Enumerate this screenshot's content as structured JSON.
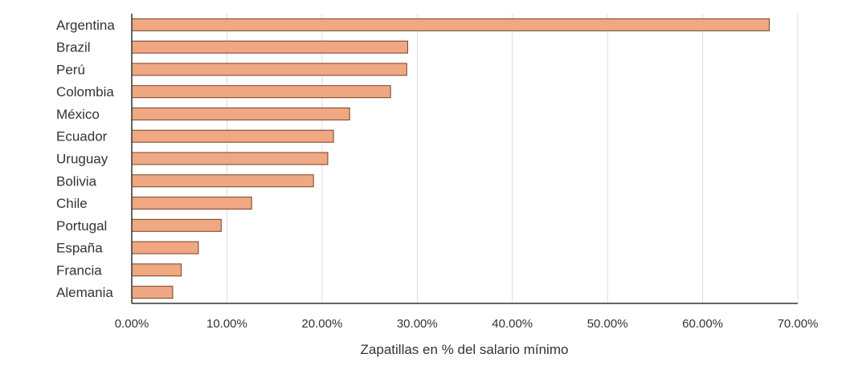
{
  "chart_data": {
    "type": "bar",
    "orientation": "horizontal",
    "categories": [
      "Argentina",
      "Brazil",
      "Perú",
      "Colombia",
      "México",
      "Ecuador",
      "Uruguay",
      "Bolivia",
      "Chile",
      "Portugal",
      "España",
      "Francia",
      "Alemania"
    ],
    "values": [
      0.67,
      0.29,
      0.289,
      0.272,
      0.229,
      0.212,
      0.206,
      0.191,
      0.126,
      0.094,
      0.07,
      0.052,
      0.043
    ],
    "title": "",
    "xlabel": "Zapatillas en % del salario mínimo",
    "ylabel": "",
    "xlim": [
      0,
      0.7
    ],
    "xticks": [
      0,
      0.1,
      0.2,
      0.3,
      0.4,
      0.5,
      0.6,
      0.7
    ],
    "xtick_labels": [
      "0.00%",
      "10.00%",
      "20.00%",
      "30.00%",
      "40.00%",
      "50.00%",
      "60.00%",
      "70.00%"
    ],
    "grid": "vertical",
    "legend": "none",
    "bar_color": "#efa882",
    "bar_edge_color": "#7a3f24",
    "grid_color": "#dddddd",
    "axis_color": "#333333"
  }
}
